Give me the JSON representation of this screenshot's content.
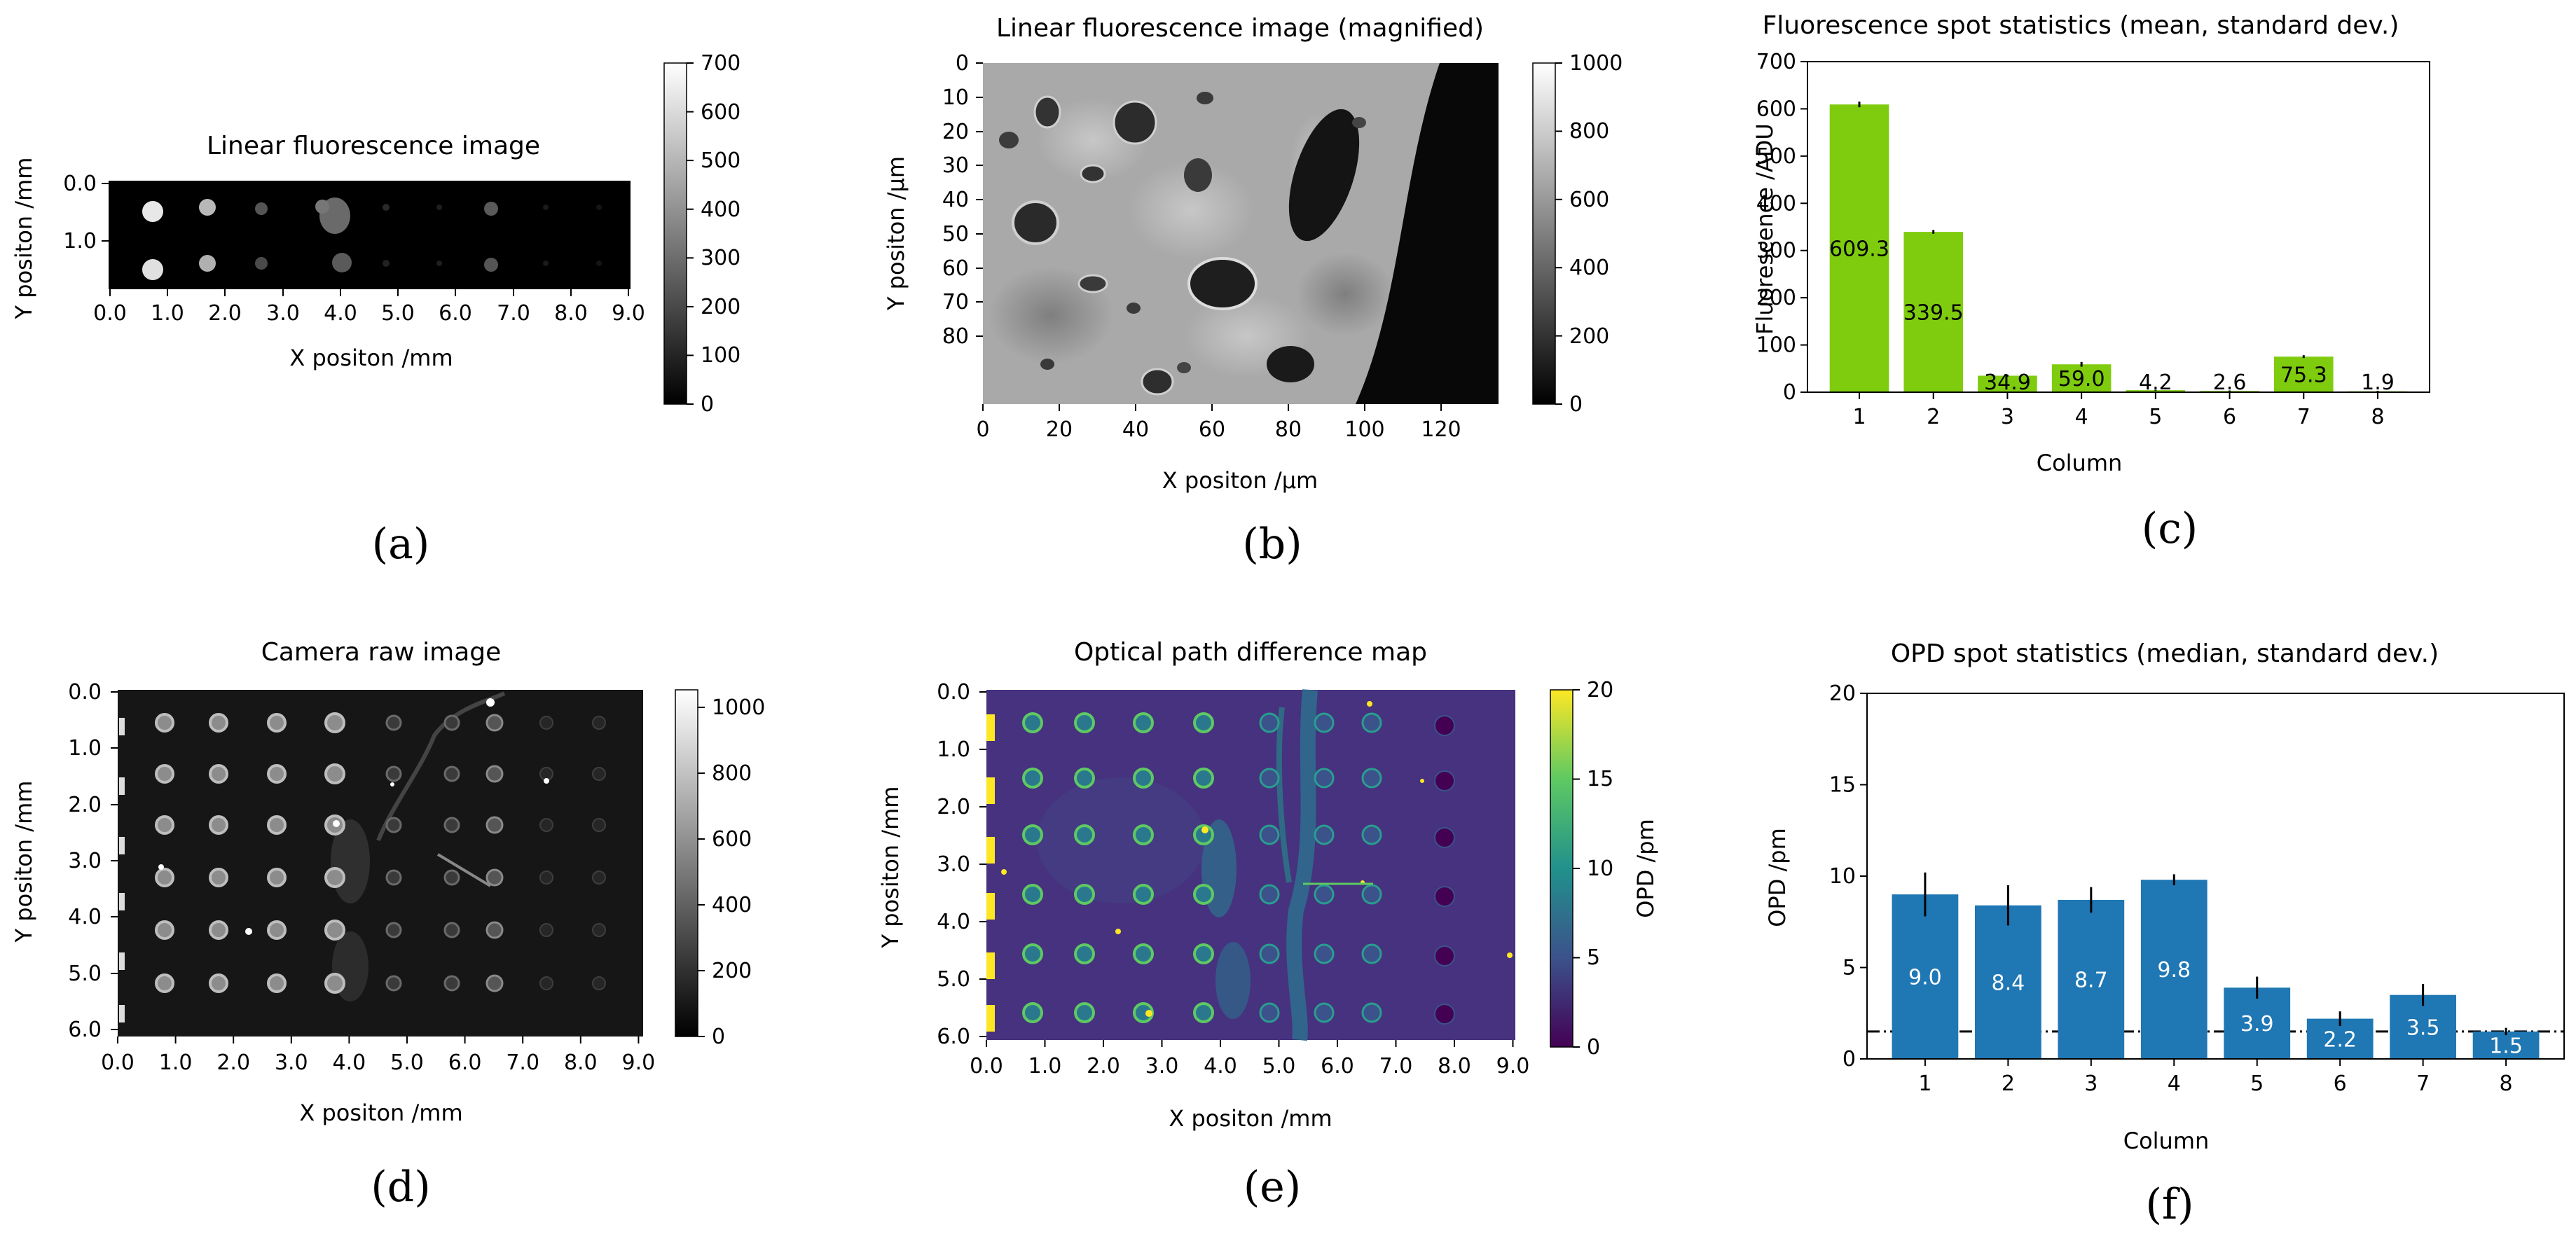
{
  "panels": {
    "a": {
      "title": "Linear fluorescence image",
      "xlabel": "X positon /mm",
      "ylabel": "Y positon /mm",
      "xticks": [
        "0.0",
        "1.0",
        "2.0",
        "3.0",
        "4.0",
        "5.0",
        "6.0",
        "7.0",
        "8.0",
        "9.0"
      ],
      "yticks": [
        "0.0",
        "1.0"
      ],
      "colorbar_ticks": [
        "0",
        "100",
        "200",
        "300",
        "400",
        "500",
        "600",
        "700"
      ],
      "label": "(a)"
    },
    "b": {
      "title": "Linear fluorescence image (magnified)",
      "xlabel": "X positon /µm",
      "ylabel": "Y positon /µm",
      "xticks": [
        "0",
        "20",
        "40",
        "60",
        "80",
        "100",
        "120"
      ],
      "yticks": [
        "0",
        "10",
        "20",
        "30",
        "40",
        "50",
        "60",
        "70",
        "80"
      ],
      "colorbar_ticks": [
        "0",
        "200",
        "400",
        "600",
        "800",
        "1000"
      ],
      "label": "(b)"
    },
    "d": {
      "title": "Camera raw image",
      "xlabel": "X positon /mm",
      "ylabel": "Y positon /mm",
      "xticks": [
        "0.0",
        "1.0",
        "2.0",
        "3.0",
        "4.0",
        "5.0",
        "6.0",
        "7.0",
        "8.0",
        "9.0"
      ],
      "yticks": [
        "0.0",
        "1.0",
        "2.0",
        "3.0",
        "4.0",
        "5.0",
        "6.0"
      ],
      "colorbar_ticks": [
        "0",
        "200",
        "400",
        "600",
        "800",
        "1000"
      ],
      "label": "(d)"
    },
    "e": {
      "title": "Optical path difference map",
      "xlabel": "X positon /mm",
      "ylabel": "Y positon /mm",
      "colorbar_label": "OPD /pm",
      "xticks": [
        "0.0",
        "1.0",
        "2.0",
        "3.0",
        "4.0",
        "5.0",
        "6.0",
        "7.0",
        "8.0",
        "9.0"
      ],
      "yticks": [
        "0.0",
        "1.0",
        "2.0",
        "3.0",
        "4.0",
        "5.0",
        "6.0"
      ],
      "colorbar_ticks": [
        "0",
        "5",
        "10",
        "15",
        "20"
      ],
      "label": "(e)"
    }
  },
  "chart_data": [
    {
      "id": "c",
      "type": "bar",
      "title": "Fluorescence spot statistics (mean, standard dev.)",
      "xlabel": "Column",
      "ylabel": "Fluorescence /ADU",
      "categories": [
        "1",
        "2",
        "3",
        "4",
        "5",
        "6",
        "7",
        "8"
      ],
      "values": [
        609.3,
        339.5,
        34.9,
        59.0,
        4.2,
        2.6,
        75.3,
        1.9
      ],
      "value_labels": [
        "609.3",
        "339.5",
        "34.9",
        "59.0",
        "4.2",
        "2.6",
        "75.3",
        "1.9"
      ],
      "errors": [
        6,
        4,
        2,
        5,
        1,
        1,
        3,
        1
      ],
      "ylim": [
        0,
        700
      ],
      "yticks": [
        "0",
        "100",
        "200",
        "300",
        "400",
        "500",
        "600",
        "700"
      ],
      "bar_color": "#7fcc0f",
      "label": "(c)"
    },
    {
      "id": "f",
      "type": "bar",
      "title": "OPD spot statistics (median, standard dev.)",
      "xlabel": "Column",
      "ylabel": "OPD /pm",
      "categories": [
        "1",
        "2",
        "3",
        "4",
        "5",
        "6",
        "7",
        "8"
      ],
      "values": [
        9.0,
        8.4,
        8.7,
        9.8,
        3.9,
        2.2,
        3.5,
        1.5
      ],
      "value_labels": [
        "9.0",
        "8.4",
        "8.7",
        "9.8",
        "3.9",
        "2.2",
        "3.5",
        "1.5"
      ],
      "errors": [
        1.2,
        1.1,
        0.7,
        0.3,
        0.6,
        0.4,
        0.6,
        0.2
      ],
      "reference_line": 1.5,
      "ylim": [
        0,
        20
      ],
      "yticks": [
        "0",
        "5",
        "10",
        "15",
        "20"
      ],
      "bar_color": "#1f77b4",
      "label": "(f)"
    }
  ]
}
